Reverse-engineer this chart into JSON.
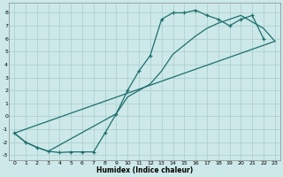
{
  "xlabel": "Humidex (Indice chaleur)",
  "background_color": "#cce8e8",
  "grid_color": "#aacccc",
  "line_color": "#1e6e6e",
  "xlim": [
    -0.5,
    23.5
  ],
  "ylim": [
    -3.4,
    8.8
  ],
  "xticks": [
    0,
    1,
    2,
    3,
    4,
    5,
    6,
    7,
    8,
    9,
    10,
    11,
    12,
    13,
    14,
    15,
    16,
    17,
    18,
    19,
    20,
    21,
    22,
    23
  ],
  "yticks": [
    -3,
    -2,
    -1,
    0,
    1,
    2,
    3,
    4,
    5,
    6,
    7,
    8
  ],
  "curve1_x": [
    0,
    1,
    2,
    3,
    4,
    5,
    6,
    7,
    8,
    9,
    10,
    11,
    12,
    13,
    14,
    15,
    16,
    17,
    18,
    19,
    20,
    21,
    22
  ],
  "curve1_y": [
    -1.3,
    -2.0,
    -2.4,
    -2.7,
    -2.8,
    -2.75,
    -2.75,
    -2.75,
    -1.3,
    0.2,
    2.0,
    3.5,
    4.7,
    7.5,
    8.0,
    8.0,
    8.2,
    7.8,
    7.5,
    7.0,
    7.5,
    7.8,
    6.0
  ],
  "curve2_x": [
    0,
    1,
    2,
    3,
    9,
    10,
    11,
    12,
    13,
    14,
    15,
    16,
    17,
    18,
    19,
    20,
    21,
    22,
    23
  ],
  "curve2_y": [
    -1.3,
    -2.0,
    -2.4,
    -2.7,
    0.2,
    1.5,
    2.0,
    2.5,
    3.5,
    4.8,
    5.5,
    6.2,
    6.8,
    7.2,
    7.5,
    7.8,
    7.3,
    6.8,
    5.8
  ],
  "curve3_x": [
    0,
    23
  ],
  "curve3_y": [
    -1.3,
    5.8
  ]
}
